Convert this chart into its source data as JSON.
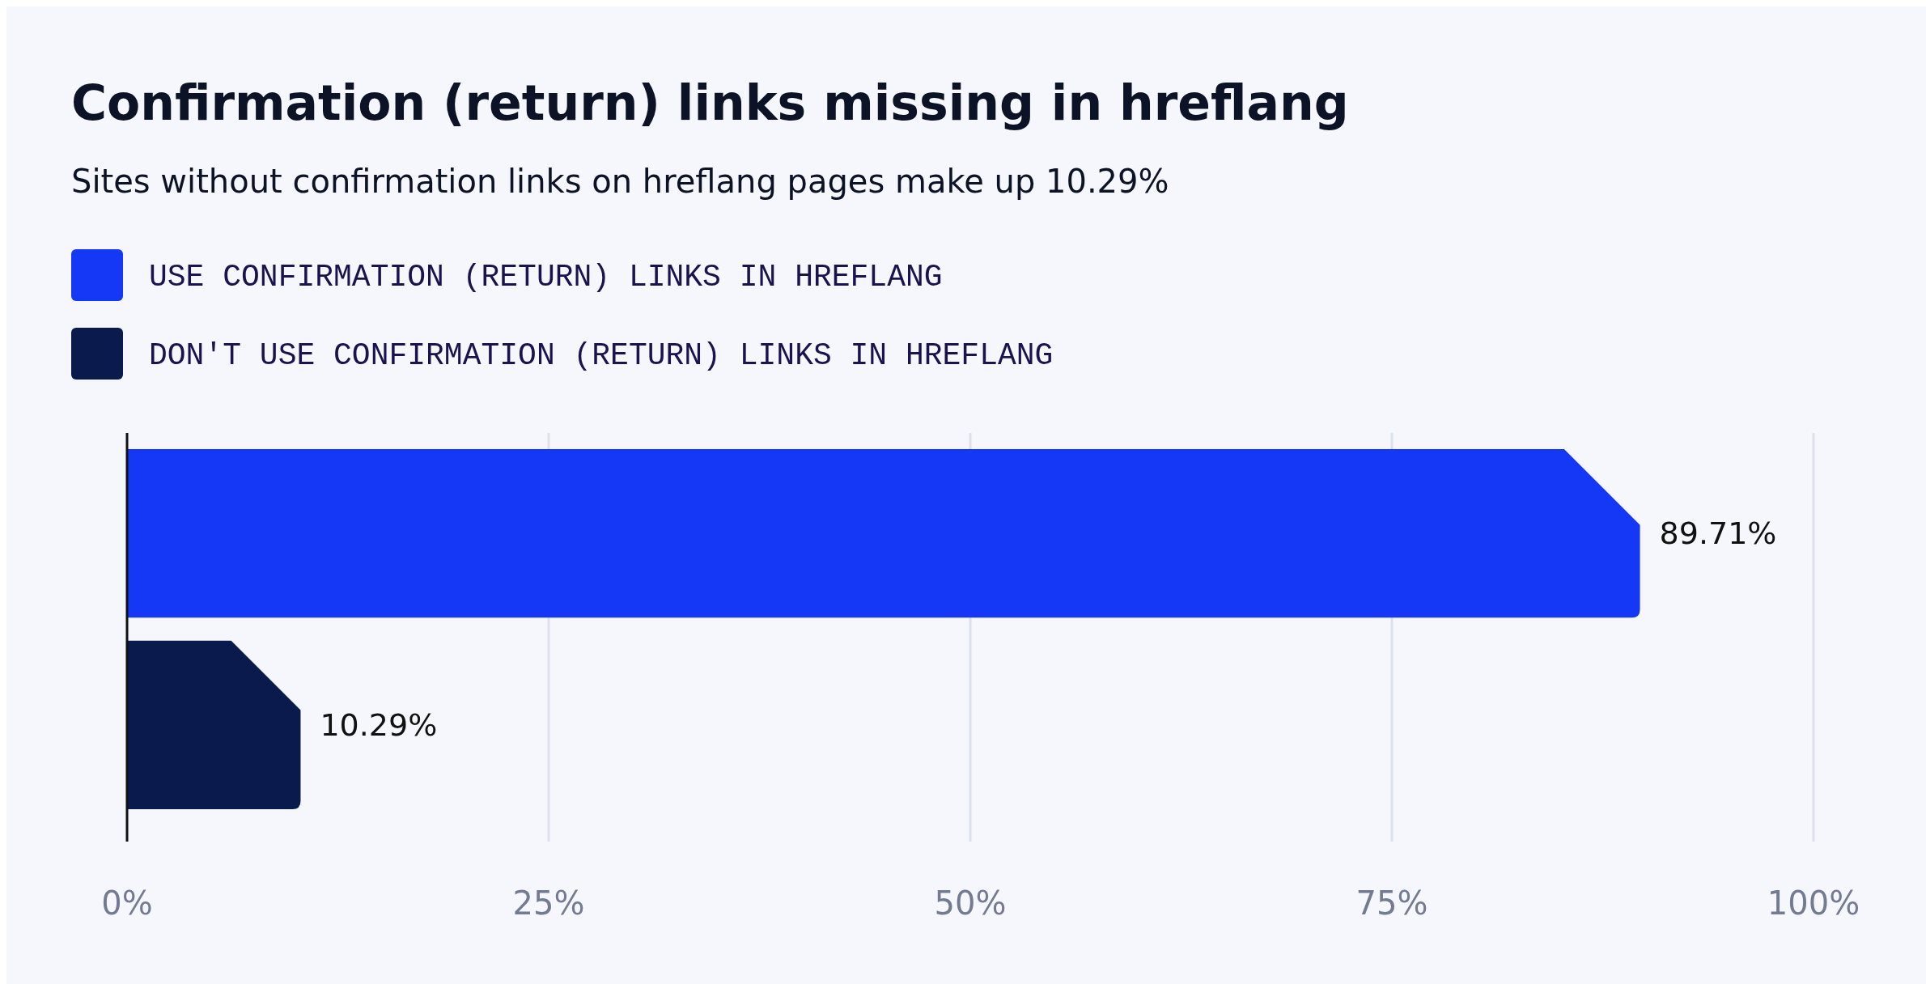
{
  "chart_data": {
    "type": "bar",
    "orientation": "horizontal",
    "title": "Confirmation (return) links missing in hreflang",
    "subtitle": "Sites without confirmation links on hreflang pages make up 10.29%",
    "categories": [
      null,
      null
    ],
    "series": [
      {
        "name": "USE CONFIRMATION (RETURN) LINKS IN HREFLANG",
        "color": "#1438f5",
        "values": [
          89.71,
          null
        ],
        "value_labels": [
          "89.71%",
          null
        ]
      },
      {
        "name": "DON'T USE CONFIRMATION (RETURN) LINKS IN HREFLANG",
        "color": "#0a1a4c",
        "values": [
          null,
          10.29
        ],
        "value_labels": [
          null,
          "10.29%"
        ]
      }
    ],
    "xlim": [
      0,
      100
    ],
    "xticks": [
      {
        "value": 0,
        "label": "0%"
      },
      {
        "value": 25,
        "label": "25%"
      },
      {
        "value": 50,
        "label": "50%"
      },
      {
        "value": 75,
        "label": "75%"
      },
      {
        "value": 100,
        "label": "100%"
      }
    ],
    "grid": "x",
    "legend": "top"
  }
}
